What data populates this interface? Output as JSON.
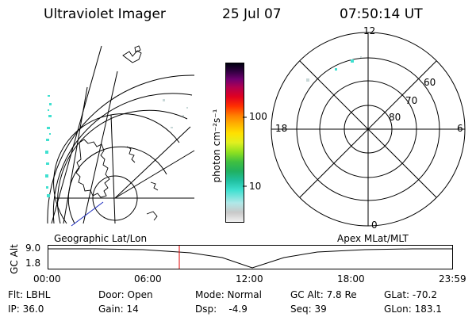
{
  "header": {
    "instrument": "Ultraviolet Imager",
    "date": "25 Jul 07",
    "time": "07:50:14 UT"
  },
  "geo_panel": {
    "label": "Geographic Lat/Lon"
  },
  "color_bar": {
    "unit_label": "photon cm⁻²s⁻¹",
    "ticks": [
      "100",
      "10"
    ],
    "scale": "log",
    "colors": [
      "#f0f0f0",
      "#c8c8c8",
      "#b0e8e8",
      "#40e0d0",
      "#20c0a0",
      "#20b060",
      "#40c040",
      "#90e020",
      "#e0f020",
      "#ffe000",
      "#ffb000",
      "#ff8000",
      "#ff3000",
      "#e00020",
      "#b00050",
      "#700070",
      "#300040",
      "#000010"
    ]
  },
  "polar_panel": {
    "label": "Apex MLat/MLT",
    "lat_labels": [
      "60",
      "70",
      "80"
    ],
    "mlt_labels": {
      "top": "12",
      "left": "18",
      "right": "6",
      "bottom": "0"
    }
  },
  "altitude_plot": {
    "ylabel": "GC Alt",
    "yticks": [
      "9.0",
      "1.8"
    ],
    "xticks": [
      "00:00",
      "06:00",
      "12:00",
      "18:00",
      "23:59"
    ],
    "current_time_marker": "07:50"
  },
  "info": {
    "flt": "Flt: LBHL",
    "door": "Door: Open",
    "mode": "Mode: Normal",
    "gc_alt": "GC Alt: 7.8 Re",
    "glat": "GLat: -70.2",
    "ip": "IP: 36.0",
    "gain": "Gain: 14",
    "dsp": "Dsp:    -4.9",
    "seq": "Seq: 39",
    "glon": "GLon: 183.1"
  }
}
